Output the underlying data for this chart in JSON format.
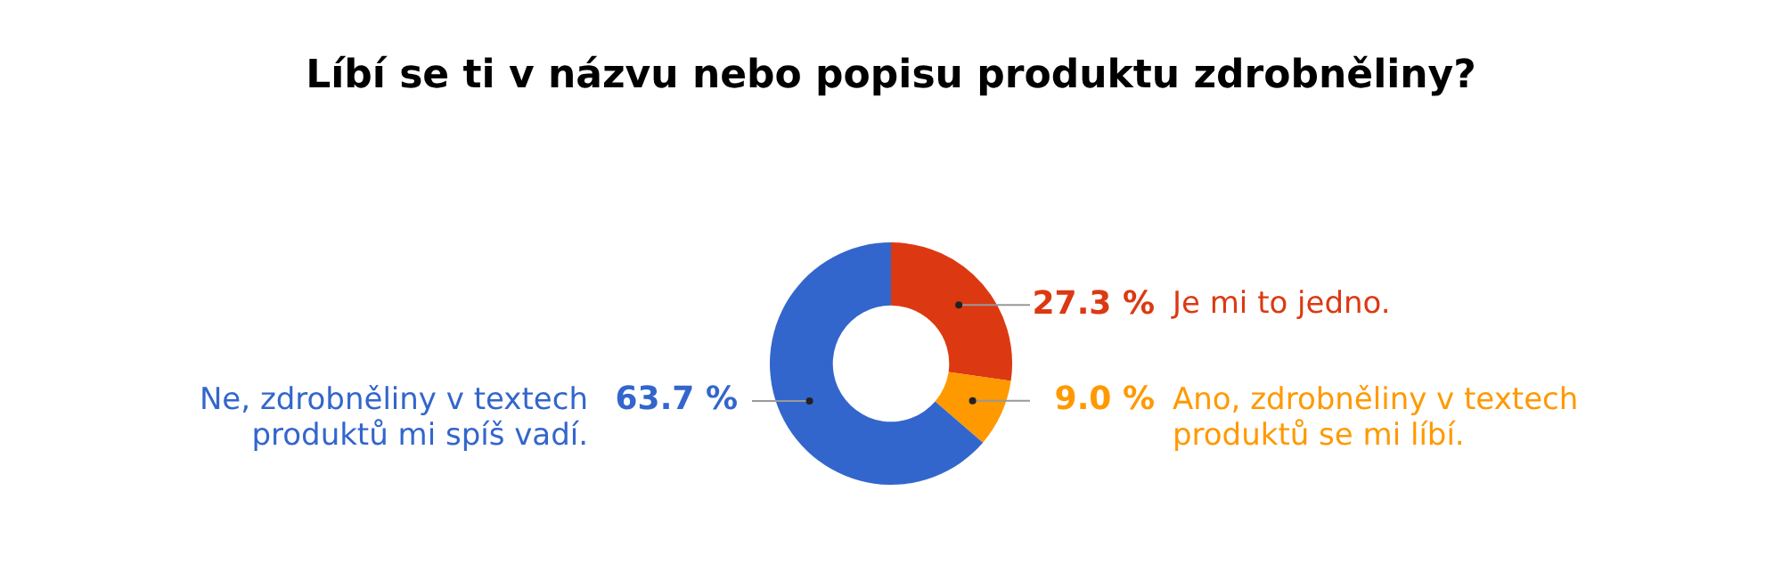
{
  "chart_data": {
    "type": "donut",
    "title": "Líbí se ti v názvu nebo popisu produktu zdrobněliny?",
    "categories": [
      "Je mi to jedno.",
      "Ano, zdrobněliny v textech produktů se mi líbí.",
      "Ne, zdrobněliny v textech produktů mi spíš vadí."
    ],
    "values": [
      27.3,
      9.0,
      63.7
    ],
    "colors": [
      "#dc3912",
      "#ff9900",
      "#3366cc"
    ],
    "value_labels": [
      "27.3 %",
      "9.0 %",
      "63.7 %"
    ],
    "legend": false
  }
}
